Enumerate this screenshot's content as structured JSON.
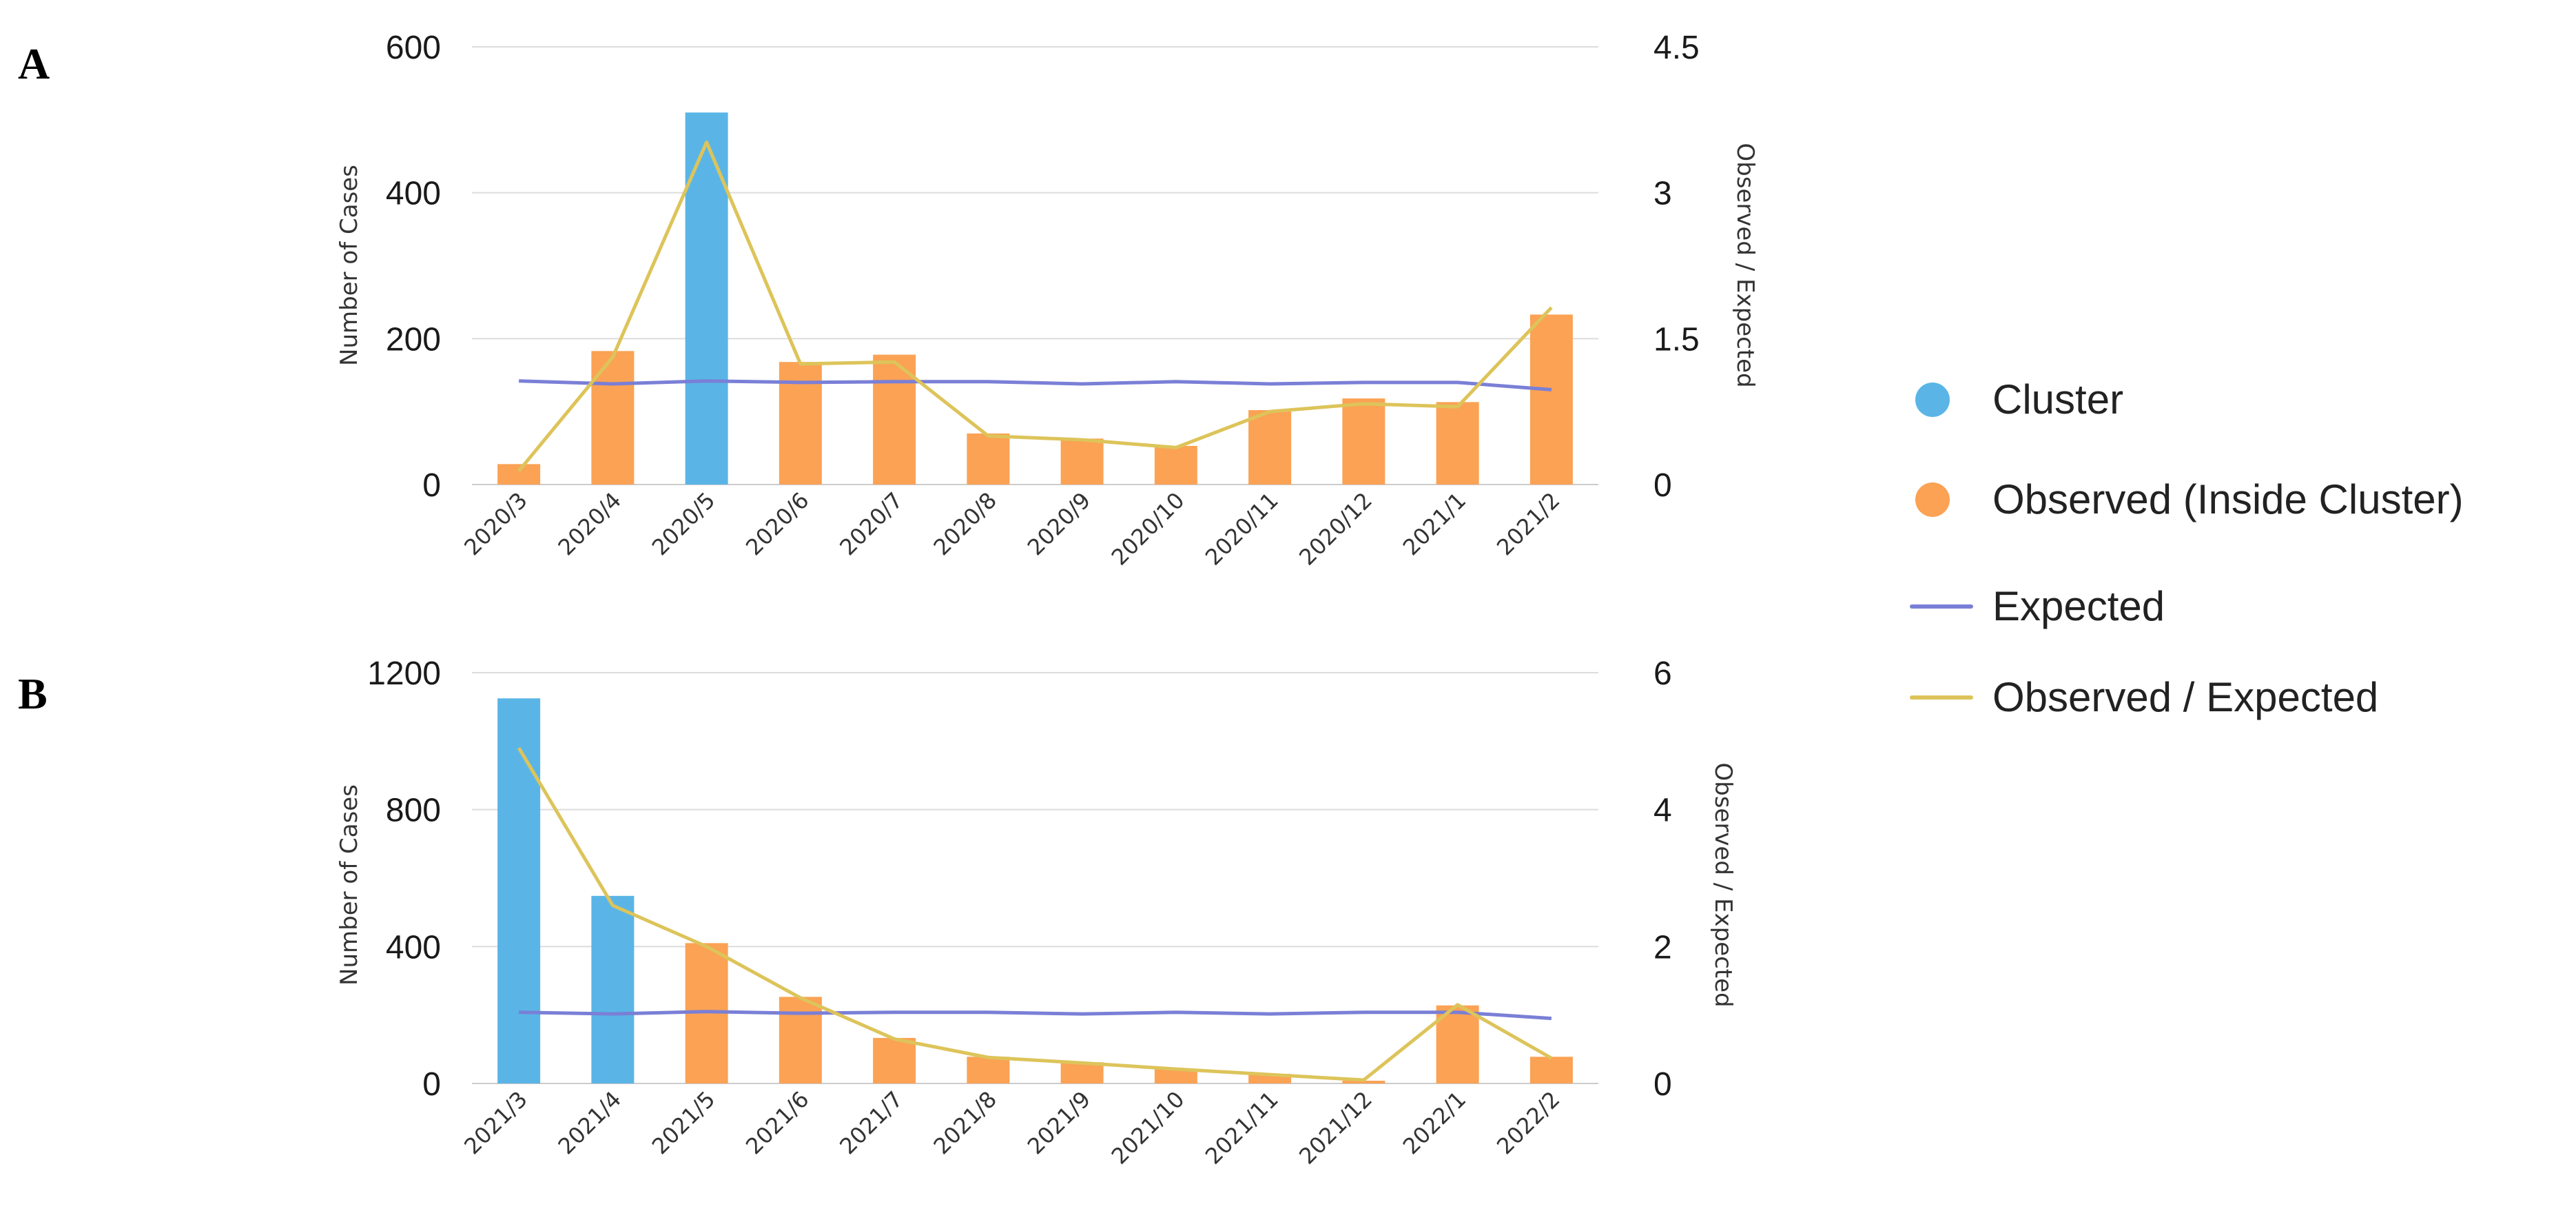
{
  "colors": {
    "cluster": "#5ab5e6",
    "observed": "#fba254",
    "expected": "#7a7fd6",
    "ratio": "#ddc45a",
    "grid": "#dcdcdc"
  },
  "panels": {
    "a": {
      "label": "A"
    },
    "b": {
      "label": "B"
    }
  },
  "legend": {
    "items": [
      {
        "label": "Cluster",
        "icon": "dot-icon",
        "color": "#5ab5e6"
      },
      {
        "label": "Observed (Inside Cluster)",
        "icon": "dot-icon",
        "color": "#fba254"
      },
      {
        "label": "Expected",
        "icon": "line-icon",
        "color": "#7a7fd6"
      },
      {
        "label": "Observed / Expected",
        "icon": "line-icon",
        "color": "#ddc45a"
      }
    ]
  },
  "chart_data": [
    {
      "panel": "A",
      "type": "bar",
      "categories": [
        "2020/3",
        "2020/4",
        "2020/5",
        "2020/6",
        "2020/7",
        "2020/8",
        "2020/9",
        "2020/10",
        "2020/11",
        "2020/12",
        "2021/1",
        "2021/2"
      ],
      "ylabel": "Number of Cases",
      "y2label": "Observed / Expected",
      "ylim": [
        0,
        600
      ],
      "y2lim": [
        0,
        4.5
      ],
      "yticks": [
        "0",
        "200",
        "400",
        "600"
      ],
      "yticks_values": [
        0,
        200,
        400,
        600
      ],
      "y2ticks": [
        "0",
        "1.5",
        "3",
        "4.5"
      ],
      "y2ticks_values": [
        0,
        1.5,
        3,
        4.5
      ],
      "series": [
        {
          "name": "Cluster",
          "kind": "bar",
          "values": [
            null,
            null,
            510,
            null,
            null,
            null,
            null,
            null,
            null,
            null,
            null,
            null
          ]
        },
        {
          "name": "Observed (Inside Cluster)",
          "kind": "bar",
          "values": [
            28,
            183,
            null,
            168,
            178,
            70,
            63,
            53,
            102,
            118,
            113,
            233
          ]
        },
        {
          "name": "Expected",
          "kind": "line",
          "axis": "left",
          "values": [
            142,
            138,
            142,
            140,
            141,
            141,
            138,
            141,
            138,
            140,
            140,
            130
          ]
        },
        {
          "name": "Observed / Expected",
          "kind": "line",
          "axis": "right",
          "values": [
            0.14,
            1.31,
            3.52,
            1.24,
            1.26,
            0.5,
            0.46,
            0.38,
            0.75,
            0.83,
            0.8,
            1.82
          ]
        }
      ]
    },
    {
      "panel": "B",
      "type": "bar",
      "categories": [
        "2021/3",
        "2021/4",
        "2021/5",
        "2021/6",
        "2021/7",
        "2021/8",
        "2021/9",
        "2021/10",
        "2021/11",
        "2021/12",
        "2022/1",
        "2022/2"
      ],
      "ylabel": "Number of Cases",
      "y2label": "Observed / Expected",
      "ylim": [
        0,
        1200
      ],
      "y2lim": [
        0,
        6
      ],
      "yticks": [
        "0",
        "400",
        "800",
        "1200"
      ],
      "yticks_values": [
        0,
        400,
        800,
        1200
      ],
      "y2ticks": [
        "0",
        "2",
        "4",
        "6"
      ],
      "y2ticks_values": [
        0,
        2,
        4,
        6
      ],
      "series": [
        {
          "name": "Cluster",
          "kind": "bar",
          "values": [
            1125,
            548,
            null,
            null,
            null,
            null,
            null,
            null,
            null,
            null,
            null,
            null
          ]
        },
        {
          "name": "Observed (Inside Cluster)",
          "kind": "bar",
          "values": [
            null,
            null,
            410,
            253,
            133,
            78,
            62,
            42,
            28,
            8,
            228,
            78
          ]
        },
        {
          "name": "Expected",
          "kind": "line",
          "axis": "left",
          "values": [
            208,
            203,
            210,
            205,
            208,
            208,
            203,
            208,
            203,
            208,
            208,
            190
          ]
        },
        {
          "name": "Observed / Expected",
          "kind": "line",
          "axis": "right",
          "values": [
            4.9,
            2.6,
            2.0,
            1.25,
            0.65,
            0.38,
            0.3,
            0.21,
            0.13,
            0.05,
            1.15,
            0.37
          ]
        }
      ]
    }
  ]
}
